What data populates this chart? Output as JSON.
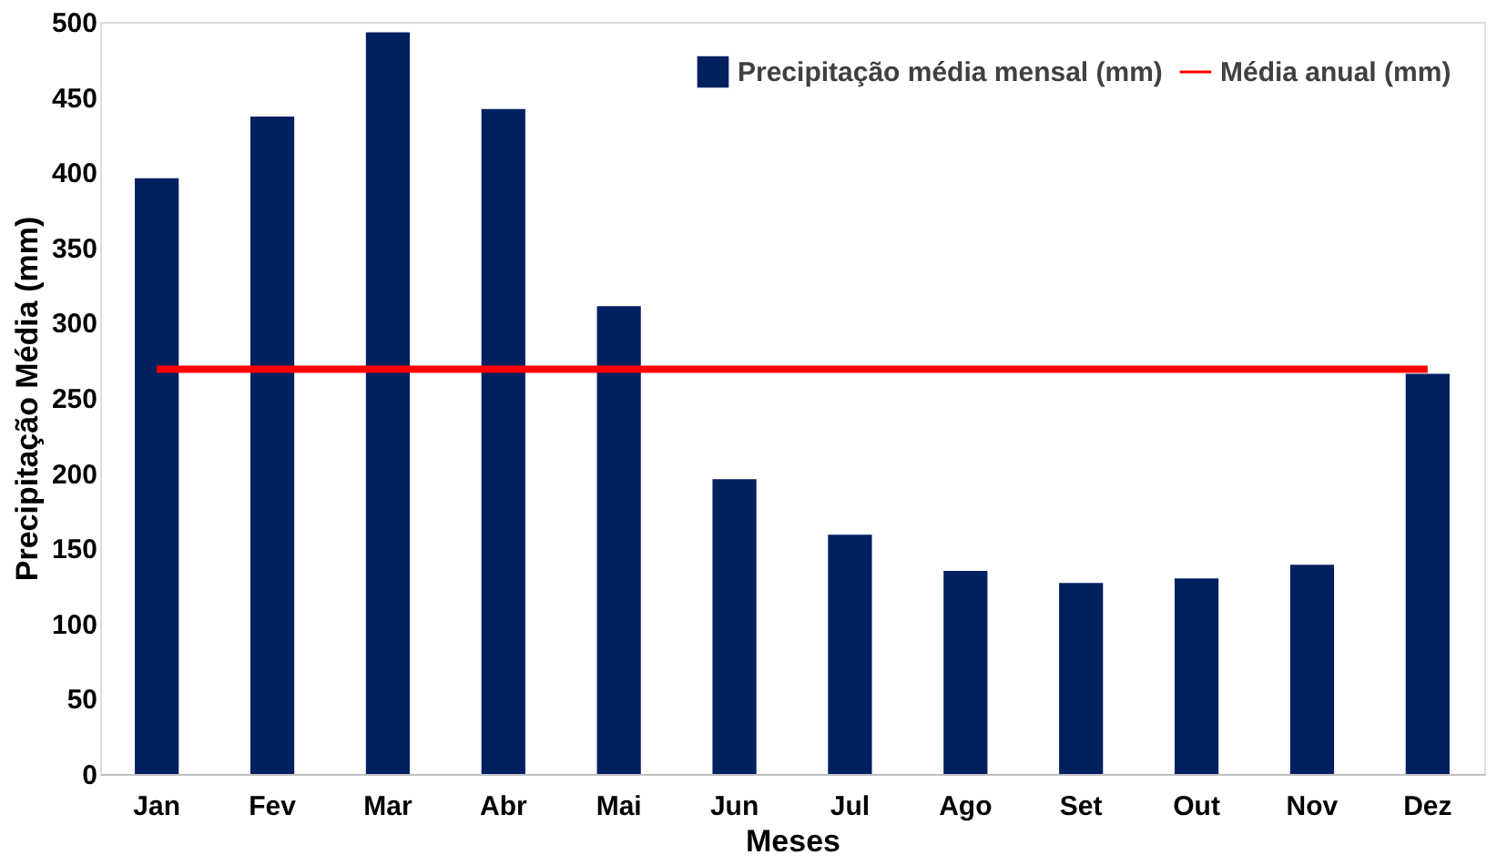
{
  "chart_data": {
    "type": "bar",
    "xlabel": "Meses",
    "ylabel": "Precipitação Média (mm)",
    "categories": [
      "Jan",
      "Fev",
      "Mar",
      "Abr",
      "Mai",
      "Jun",
      "Jul",
      "Ago",
      "Set",
      "Out",
      "Nov",
      "Dez"
    ],
    "series": [
      {
        "name": "Precipitação média mensal (mm)",
        "color": "#002060",
        "values": [
          396,
          437,
          493,
          442,
          311,
          196,
          159,
          135,
          127,
          130,
          139,
          266
        ]
      },
      {
        "name": "Média anual (mm)",
        "color": "#ff0000",
        "type": "line",
        "marker": "none",
        "values": [
          269,
          269,
          269,
          269,
          269,
          269,
          269,
          269,
          269,
          269,
          269,
          269
        ]
      }
    ],
    "ylim": [
      0,
      500
    ],
    "yticks": [
      0,
      50,
      100,
      150,
      200,
      250,
      300,
      350,
      400,
      450,
      500
    ],
    "grid": false,
    "legend": "top right"
  }
}
